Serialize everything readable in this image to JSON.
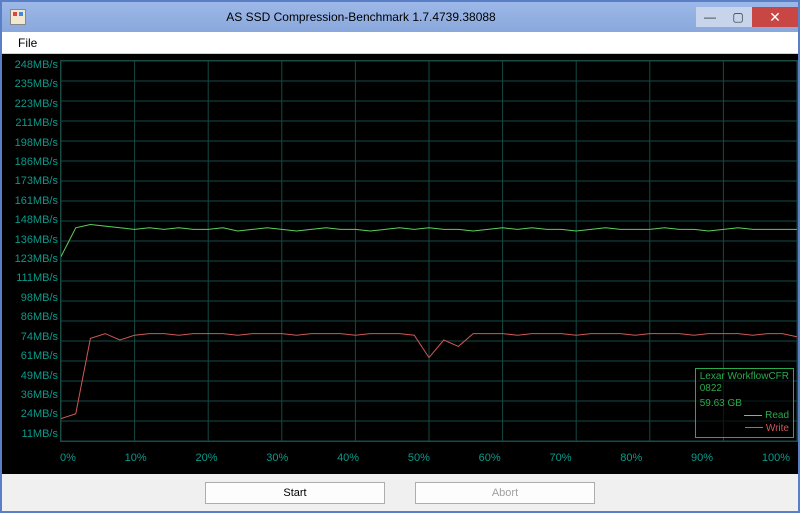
{
  "window": {
    "title": "AS SSD Compression-Benchmark 1.7.4739.38088"
  },
  "menu": {
    "file": "File"
  },
  "chart": {
    "type": "line",
    "background_color": "#000000",
    "grid_color": "#134a44",
    "axis_label_color": "#0a9a8a",
    "label_fontsize": 11,
    "y_max": 248,
    "y_min": 11,
    "y_ticks": [
      "248MB/s",
      "235MB/s",
      "223MB/s",
      "211MB/s",
      "198MB/s",
      "186MB/s",
      "173MB/s",
      "161MB/s",
      "148MB/s",
      "136MB/s",
      "123MB/s",
      "111MB/s",
      "98MB/s",
      "86MB/s",
      "74MB/s",
      "61MB/s",
      "49MB/s",
      "36MB/s",
      "24MB/s",
      "11MB/s"
    ],
    "x_ticks": [
      "0%",
      "10%",
      "20%",
      "30%",
      "40%",
      "50%",
      "60%",
      "70%",
      "80%",
      "90%",
      "100%"
    ],
    "read": {
      "label": "Read",
      "color": "#5cd05c",
      "line_width": 1,
      "values": [
        126,
        144,
        146,
        145,
        144,
        143,
        144,
        143,
        144,
        143,
        143,
        144,
        142,
        143,
        144,
        143,
        142,
        143,
        144,
        143,
        143,
        142,
        143,
        144,
        143,
        144,
        143,
        143,
        142,
        143,
        144,
        143,
        144,
        143,
        143,
        142,
        143,
        144,
        143,
        143,
        143,
        144,
        143,
        143,
        142,
        143,
        144,
        143,
        143,
        143,
        143
      ]
    },
    "write": {
      "label": "Write",
      "color": "#d05858",
      "line_width": 1,
      "values": [
        25,
        28,
        75,
        78,
        74,
        77,
        78,
        78,
        77,
        78,
        78,
        78,
        77,
        78,
        78,
        78,
        77,
        78,
        78,
        78,
        77,
        78,
        78,
        78,
        77,
        63,
        74,
        70,
        78,
        78,
        78,
        77,
        78,
        78,
        78,
        77,
        78,
        78,
        78,
        77,
        78,
        78,
        78,
        77,
        78,
        78,
        78,
        77,
        78,
        78,
        76
      ]
    },
    "legend": {
      "device": "Lexar WorkflowCFR",
      "device_id": "0822",
      "capacity": "59.63 GB",
      "border_color": "#2aaa4a"
    }
  },
  "buttons": {
    "start": "Start",
    "abort": "Abort"
  }
}
